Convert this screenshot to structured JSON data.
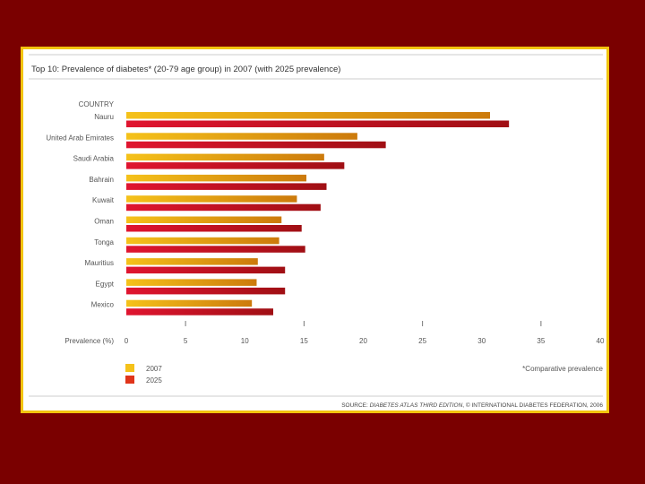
{
  "chart_data": {
    "type": "bar",
    "orientation": "horizontal",
    "title": "Top 10: Prevalence of diabetes* (20-79 age group) in 2007 (with 2025 prevalence)",
    "category_axis_label": "COUNTRY",
    "value_axis_label": "Prevalence (%)",
    "categories": [
      "Nauru",
      "United Arab Emirates",
      "Saudi Arabia",
      "Bahrain",
      "Kuwait",
      "Oman",
      "Tonga",
      "Mauritius",
      "Egypt",
      "Mexico"
    ],
    "series": [
      {
        "name": "2007",
        "color": "#e8ac10",
        "values": [
          30.7,
          19.5,
          16.7,
          15.2,
          14.4,
          13.1,
          12.9,
          11.1,
          11.0,
          10.6
        ]
      },
      {
        "name": "2025",
        "color": "#d9102a",
        "values": [
          32.3,
          21.9,
          18.4,
          16.9,
          16.4,
          14.8,
          15.1,
          13.4,
          13.4,
          12.4
        ]
      }
    ],
    "xlim": [
      0,
      40
    ],
    "xticks": [
      "0",
      "5",
      "10",
      "15",
      "20",
      "25",
      "30",
      "35",
      "40"
    ],
    "footnote": "*Comparative prevalence",
    "source_prefix": "SOURCE: ",
    "source_title": "DIABETES ATLAS THIRD EDITION",
    "source_suffix": ", © INTERNATIONAL DIABETES FEDERATION, 2006"
  }
}
